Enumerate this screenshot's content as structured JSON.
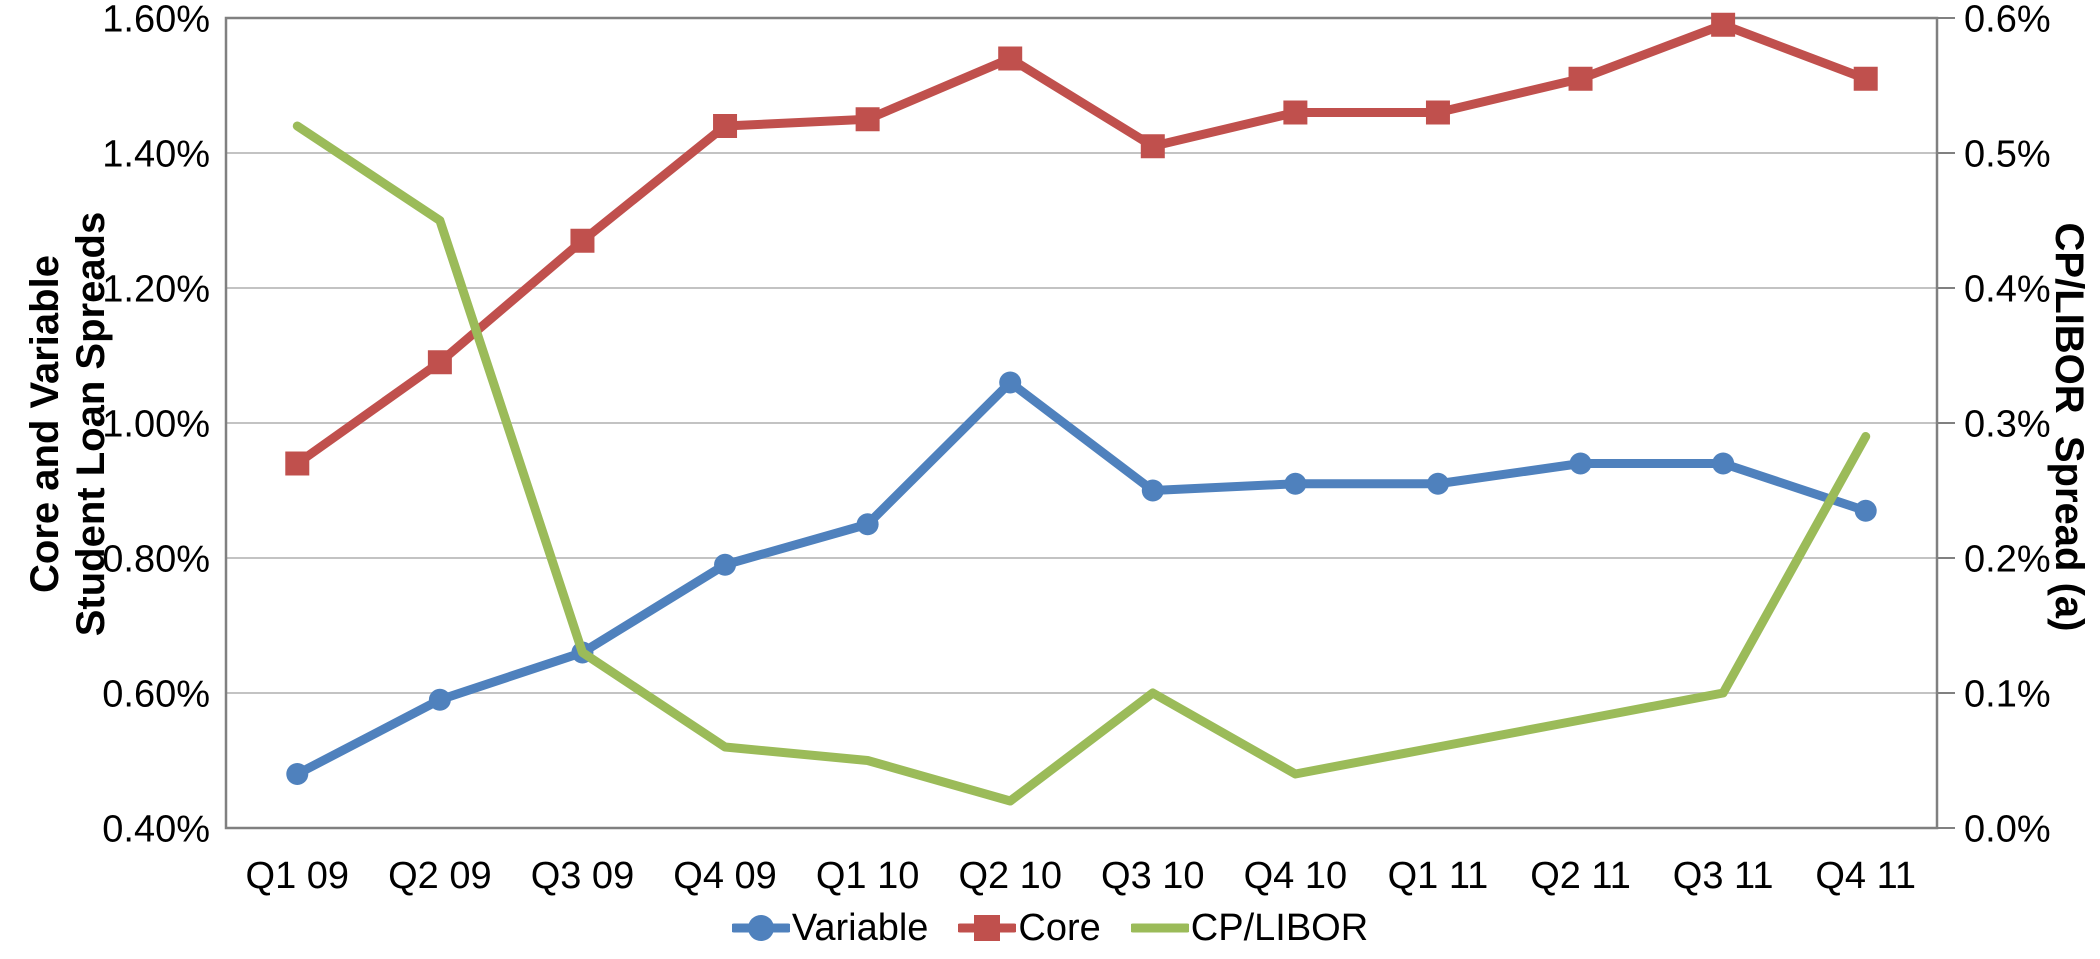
{
  "chart_data": {
    "type": "line",
    "title": "",
    "categories": [
      "Q1 09",
      "Q2 09",
      "Q3 09",
      "Q4 09",
      "Q1 10",
      "Q2 10",
      "Q3 10",
      "Q4 10",
      "Q1 11",
      "Q2 11",
      "Q3 11",
      "Q4 11"
    ],
    "left_axis": {
      "title": "Core and Variable\nStudent Loan Spreads",
      "min": 0.4,
      "max": 1.6,
      "tick_labels": [
        "1.60%",
        "1.40%",
        "1.20%",
        "1.00%",
        "0.80%",
        "0.60%",
        "0.40%"
      ]
    },
    "right_axis": {
      "title": "CP/LIBOR  Spread (a)",
      "min": 0.0,
      "max": 0.6,
      "tick_labels": [
        "0.6%",
        "0.5%",
        "0.4%",
        "0.3%",
        "0.2%",
        "0.1%",
        "0.0%"
      ]
    },
    "series": [
      {
        "name": "Variable",
        "color": "#4F81BD",
        "marker": "circle",
        "axis": "left",
        "values": [
          0.48,
          0.59,
          0.66,
          0.79,
          0.85,
          1.06,
          0.9,
          0.91,
          0.91,
          0.94,
          0.94,
          0.87
        ]
      },
      {
        "name": "Core",
        "color": "#C0504D",
        "marker": "square",
        "axis": "left",
        "values": [
          0.94,
          1.09,
          1.27,
          1.44,
          1.45,
          1.54,
          1.41,
          1.46,
          1.46,
          1.51,
          1.59,
          1.51
        ]
      },
      {
        "name": "CP/LIBOR",
        "color": "#9BBB59",
        "marker": "none",
        "axis": "right",
        "values": [
          0.52,
          0.45,
          0.13,
          0.06,
          0.05,
          0.02,
          0.1,
          0.04,
          0.06,
          0.08,
          0.1,
          0.29
        ]
      }
    ],
    "legend_position": "bottom",
    "grid": "horizontal",
    "grid_color": "#C3C3C3",
    "border_color": "#808080",
    "background_color": "#FFFFFF"
  }
}
